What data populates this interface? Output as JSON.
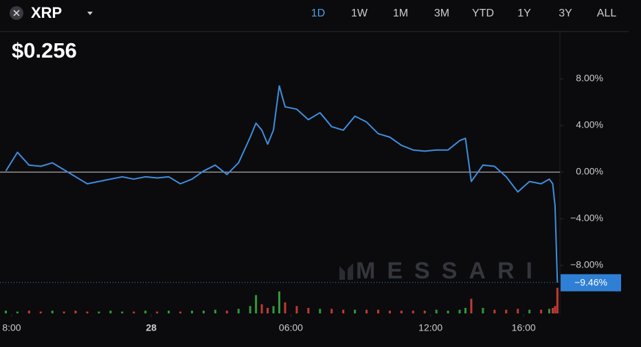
{
  "header": {
    "symbol": "XRP",
    "price": "$0.256",
    "ranges": [
      "1D",
      "1W",
      "1M",
      "3M",
      "YTD",
      "1Y",
      "3Y",
      "ALL"
    ],
    "selected_range": "1D",
    "watermark": "MESSARI"
  },
  "chart_data": {
    "type": "line",
    "color": "#3f8fe0",
    "x": [
      -6.25,
      -5.75,
      -5.25,
      -4.75,
      -4.25,
      -3.75,
      -3.25,
      -2.75,
      -2.25,
      -1.75,
      -1.25,
      -0.75,
      -0.25,
      0.25,
      0.75,
      1.25,
      1.75,
      2.25,
      2.75,
      3.25,
      3.75,
      4.25,
      4.5,
      4.75,
      5.0,
      5.25,
      5.5,
      5.75,
      6.25,
      6.75,
      7.25,
      7.75,
      8.25,
      8.75,
      9.25,
      9.75,
      10.25,
      10.75,
      11.25,
      11.75,
      12.25,
      12.75,
      13.25,
      13.5,
      13.75,
      14.25,
      14.75,
      15.25,
      15.75,
      16.25,
      16.75,
      17.1,
      17.25,
      17.35,
      17.45
    ],
    "values": [
      0.1,
      1.7,
      0.6,
      0.5,
      0.8,
      0.2,
      -0.4,
      -1.0,
      -0.8,
      -0.6,
      -0.4,
      -0.6,
      -0.4,
      -0.5,
      -0.4,
      -1.0,
      -0.6,
      0.1,
      0.6,
      -0.2,
      0.8,
      3.0,
      4.2,
      3.6,
      2.4,
      3.6,
      7.4,
      5.6,
      5.4,
      4.5,
      5.1,
      3.9,
      3.6,
      4.8,
      4.3,
      3.3,
      3.0,
      2.3,
      1.9,
      1.8,
      1.9,
      1.9,
      2.7,
      2.9,
      -0.8,
      0.6,
      0.5,
      -0.4,
      -1.7,
      -0.8,
      -1.0,
      -0.6,
      -1.0,
      -2.9,
      -9.46
    ],
    "volume": [
      3,
      2,
      3,
      2,
      3,
      2,
      3,
      2,
      2,
      3,
      2,
      2,
      3,
      2,
      3,
      2,
      3,
      3,
      4,
      3,
      5,
      8,
      20,
      10,
      6,
      8,
      24,
      12,
      8,
      6,
      5,
      5,
      4,
      4,
      4,
      4,
      3,
      3,
      3,
      3,
      4,
      3,
      4,
      6,
      16,
      6,
      4,
      4,
      5,
      4,
      4,
      5,
      6,
      8,
      28
    ],
    "volume_lim": [
      0,
      30
    ],
    "volume_colors": {
      "up": "#2f9a3c",
      "down": "#c23a34"
    },
    "last_label": "−9.46%",
    "xlim": [
      -6.5,
      17.5
    ],
    "ylim": [
      -10,
      12
    ],
    "xticks": [
      {
        "value": -6,
        "label": "8:00"
      },
      {
        "value": 0,
        "label": "28"
      },
      {
        "value": 6,
        "label": "06:00"
      },
      {
        "value": 12,
        "label": "12:00"
      },
      {
        "value": 16,
        "label": "16:00"
      }
    ],
    "yticks": [
      {
        "value": 8,
        "label": "8.00%"
      },
      {
        "value": 4,
        "label": "4.00%"
      },
      {
        "value": 0,
        "label": "0.00%"
      },
      {
        "value": -4,
        "label": "−4.00%"
      },
      {
        "value": -8,
        "label": "−8.00%"
      }
    ],
    "zero_line": true
  }
}
